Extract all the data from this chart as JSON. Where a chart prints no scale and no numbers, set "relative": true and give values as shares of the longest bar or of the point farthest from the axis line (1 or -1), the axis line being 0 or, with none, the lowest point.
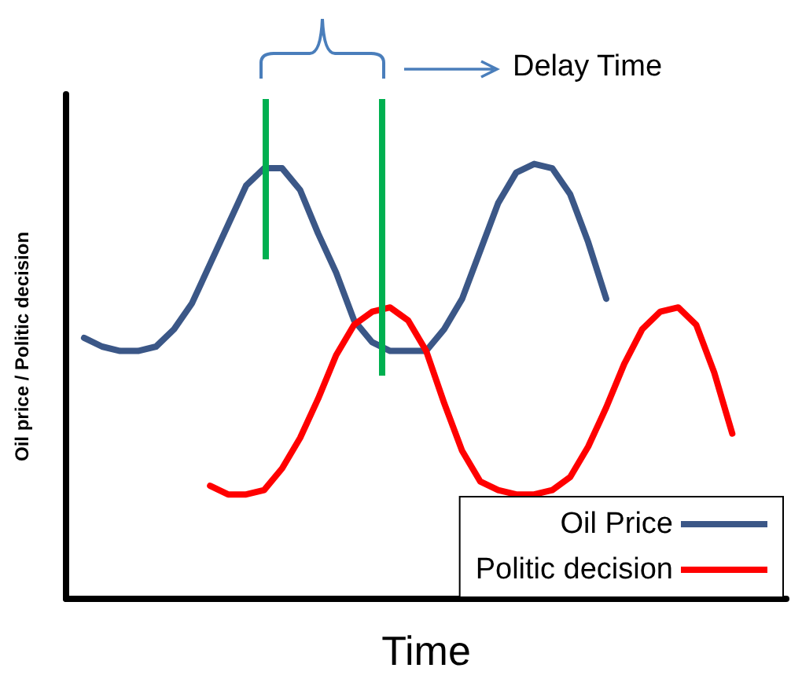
{
  "chart_data": {
    "type": "line",
    "relative": true,
    "xlabel": "Time",
    "ylabel": "Oil price / Politic decision",
    "annotations": [
      "Delay Time"
    ],
    "legend": "bottom right",
    "grid": false,
    "marker": "none",
    "categories": [
      null,
      null,
      null,
      null,
      null,
      null,
      null,
      null,
      null,
      null,
      null,
      null,
      null,
      null,
      null,
      null,
      null,
      null,
      null,
      null,
      null,
      null,
      null,
      null,
      null,
      null,
      null,
      null,
      null,
      null,
      null,
      null,
      null,
      null,
      null,
      null,
      null,
      null,
      null,
      null,
      null
    ],
    "series": [
      {
        "name": "Oil Price",
        "color": "#3b5787",
        "values": [
          null,
          0.6,
          0.58,
          0.57,
          0.57,
          0.58,
          0.62,
          0.68,
          0.77,
          0.86,
          0.95,
          0.99,
          0.99,
          0.94,
          0.84,
          0.75,
          0.64,
          0.59,
          0.57,
          0.57,
          0.57,
          0.62,
          0.69,
          0.8,
          0.91,
          0.98,
          1,
          0.99,
          0.93,
          0.82,
          0.69,
          null,
          null,
          null,
          null,
          null,
          null,
          null,
          null,
          null,
          null
        ]
      },
      {
        "name": "Politic decision",
        "color": "#ff0000",
        "values": [
          null,
          null,
          null,
          null,
          null,
          null,
          null,
          null,
          0.26,
          0.24,
          0.24,
          0.25,
          0.3,
          0.37,
          0.46,
          0.56,
          0.63,
          0.66,
          0.67,
          0.64,
          0.57,
          0.45,
          0.34,
          0.27,
          0.25,
          0.24,
          0.24,
          0.25,
          0.28,
          0.35,
          0.44,
          0.54,
          0.62,
          0.66,
          0.67,
          0.63,
          0.52,
          0.38,
          null,
          null,
          null
        ]
      }
    ]
  }
}
